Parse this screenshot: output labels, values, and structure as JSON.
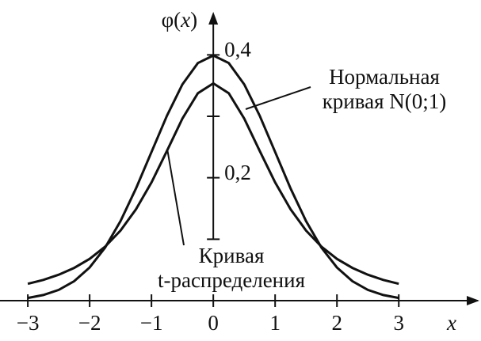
{
  "chart_data": {
    "type": "line",
    "y_label": [
      "φ(",
      "x",
      ")"
    ],
    "x_label": "x",
    "x": [
      -3,
      -2.75,
      -2.5,
      -2.25,
      -2,
      -1.75,
      -1.5,
      -1.25,
      -1,
      -0.75,
      -0.5,
      -0.25,
      0,
      0.25,
      0.5,
      0.75,
      1,
      1.25,
      1.5,
      1.75,
      2,
      2.25,
      2.5,
      2.75,
      3
    ],
    "series": [
      {
        "name": [
          "Нормальная",
          "кривая N(0;1)"
        ],
        "color": "#111111",
        "values": [
          0.0044,
          0.0091,
          0.0175,
          0.0317,
          0.054,
          0.0863,
          0.1295,
          0.1826,
          0.242,
          0.3011,
          0.3521,
          0.3867,
          0.3989,
          0.3867,
          0.3521,
          0.3011,
          0.242,
          0.1826,
          0.1295,
          0.0863,
          0.054,
          0.0317,
          0.0175,
          0.0091,
          0.0044
        ]
      },
      {
        "name": [
          "Кривая",
          "t-распределения"
        ],
        "color": "#111111",
        "values": [
          0.0274,
          0.0338,
          0.0422,
          0.0533,
          0.068,
          0.0878,
          0.1141,
          0.1487,
          0.1925,
          0.2438,
          0.2963,
          0.3376,
          0.3536,
          0.3376,
          0.2963,
          0.2438,
          0.1925,
          0.1487,
          0.1141,
          0.0878,
          0.068,
          0.0533,
          0.0422,
          0.0338,
          0.0274
        ]
      }
    ],
    "xlim": [
      -3.45,
      4.33
    ],
    "ylim": [
      0,
      0.47
    ],
    "xticks": [
      {
        "value": -3,
        "label": "−3"
      },
      {
        "value": -2,
        "label": "−2"
      },
      {
        "value": -1,
        "label": "−1"
      },
      0,
      1,
      2,
      3
    ],
    "yticks": [
      {
        "value": 0.1,
        "label": ""
      },
      {
        "value": 0.2,
        "label": "0,2"
      },
      {
        "value": 0.3,
        "label": ""
      },
      {
        "value": 0.4,
        "label": "0,4"
      }
    ]
  }
}
